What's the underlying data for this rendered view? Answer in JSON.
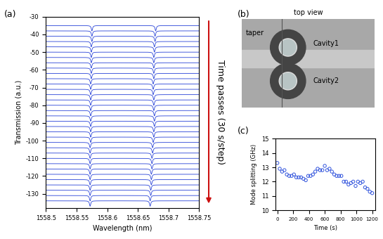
{
  "chart_data": [
    {
      "type": "line",
      "panel_label": "(a)",
      "x_label": "Wavelength (nm)",
      "y_label": "Transmission (a.u.)",
      "xlim": [
        1558.5,
        1558.75
      ],
      "xticks": [
        1558.5,
        1558.55,
        1558.6,
        1558.65,
        1558.7,
        1558.75
      ],
      "ylim": [
        -138,
        -30
      ],
      "yticks": [
        -30,
        -40,
        -50,
        -60,
        -70,
        -80,
        -90,
        -100,
        -110,
        -120,
        -130
      ],
      "color": "#2a44d8",
      "dip_depth": 3,
      "dip_width": 0.0012,
      "offsets": [
        -35,
        -38,
        -41,
        -44,
        -47,
        -50,
        -53,
        -56,
        -59,
        -62,
        -65,
        -68,
        -71,
        -74,
        -77,
        -80,
        -83,
        -86,
        -89,
        -92,
        -95,
        -98,
        -101,
        -104,
        -107,
        -110,
        -113,
        -116,
        -119,
        -122,
        -125,
        -128,
        -131,
        -134
      ],
      "dip1": [
        1558.575,
        1558.575,
        1558.575,
        1558.574,
        1558.574,
        1558.574,
        1558.574,
        1558.574,
        1558.574,
        1558.574,
        1558.573,
        1558.573,
        1558.573,
        1558.573,
        1558.573,
        1558.573,
        1558.573,
        1558.573,
        1558.573,
        1558.573,
        1558.573,
        1558.573,
        1558.572,
        1558.572,
        1558.572,
        1558.572,
        1558.572,
        1558.572,
        1558.572,
        1558.572,
        1558.572,
        1558.572,
        1558.572,
        1558.572
      ],
      "dip2": [
        1558.679,
        1558.678,
        1558.678,
        1558.677,
        1558.677,
        1558.676,
        1558.676,
        1558.676,
        1558.676,
        1558.676,
        1558.675,
        1558.675,
        1558.675,
        1558.676,
        1558.676,
        1558.676,
        1558.677,
        1558.677,
        1558.677,
        1558.676,
        1558.676,
        1558.675,
        1558.674,
        1558.674,
        1558.673,
        1558.673,
        1558.673,
        1558.672,
        1558.672,
        1558.672,
        1558.671,
        1558.671,
        1558.67,
        1558.67
      ],
      "annotation": {
        "text": "Time passes (30 s/step)",
        "color": "#cc1111"
      }
    },
    {
      "type": "scatter",
      "panel_label": "(c)",
      "x_label": "Time (s)",
      "y_label": "Mode splitting (GHz)",
      "x": [
        0,
        30,
        60,
        90,
        120,
        150,
        180,
        210,
        240,
        270,
        300,
        330,
        360,
        390,
        420,
        450,
        480,
        510,
        540,
        570,
        600,
        630,
        660,
        690,
        720,
        750,
        780,
        810,
        840,
        870,
        900,
        930,
        960,
        990,
        1020,
        1050,
        1080,
        1110,
        1140,
        1170,
        1200
      ],
      "values": [
        13.3,
        12.9,
        12.7,
        12.8,
        12.5,
        12.4,
        12.4,
        12.5,
        12.3,
        12.3,
        12.3,
        12.2,
        12.1,
        12.4,
        12.4,
        12.5,
        12.7,
        12.9,
        12.8,
        12.8,
        13.1,
        12.8,
        12.9,
        12.7,
        12.5,
        12.4,
        12.4,
        12.4,
        12.0,
        12.0,
        11.8,
        11.9,
        12.0,
        11.7,
        12.0,
        11.9,
        12.0,
        11.6,
        11.5,
        11.3,
        11.2
      ],
      "xlim": [
        -20,
        1240
      ],
      "xticks": [
        0,
        200,
        400,
        600,
        800,
        1000,
        1200
      ],
      "ylim": [
        10,
        15
      ],
      "yticks": [
        10,
        11,
        12,
        13,
        14,
        15
      ],
      "color": "#3355dd",
      "marker": "o"
    }
  ],
  "diagram": {
    "panel_label": "(b)",
    "title": "top view",
    "labels": [
      "taper",
      "Cavity1",
      "Cavity2"
    ]
  }
}
